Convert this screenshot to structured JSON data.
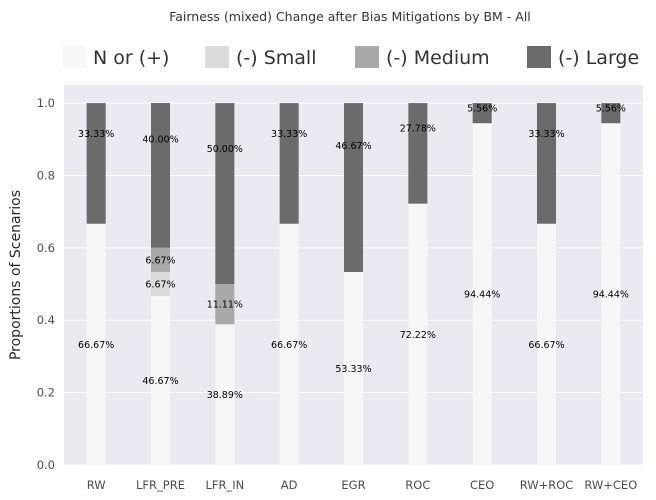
{
  "chart_data": {
    "type": "bar",
    "stacked": true,
    "title": "Fairness (mixed) Change after Bias Mitigations by BM - All",
    "xlabel": "",
    "ylabel": "Proportions of Scenarios",
    "ylim": [
      0,
      1.05
    ],
    "yticks": [
      "0.0",
      "0.2",
      "0.4",
      "0.6",
      "0.8",
      "1.0"
    ],
    "grid": true,
    "legend_position": "top",
    "categories": [
      "RW",
      "LFR_PRE",
      "LFR_IN",
      "AD",
      "EGR",
      "ROC",
      "CEO",
      "RW+ROC",
      "RW+CEO"
    ],
    "series": [
      {
        "name": "N or (+)",
        "color": "#f7f7f7",
        "values": [
          0.6667,
          0.4667,
          0.3889,
          0.6667,
          0.5333,
          0.7222,
          0.9444,
          0.6667,
          0.9444
        ],
        "labels": [
          "66.67%",
          "46.67%",
          "38.89%",
          "66.67%",
          "53.33%",
          "72.22%",
          "94.44%",
          "66.67%",
          "94.44%"
        ]
      },
      {
        "name": "(-) Small",
        "color": "#dcdcdc",
        "values": [
          0,
          0.0667,
          0,
          0,
          0,
          0,
          0,
          0,
          0
        ],
        "labels": [
          "",
          "6.67%",
          "",
          "",
          "",
          "",
          "",
          "",
          ""
        ]
      },
      {
        "name": "(-) Medium",
        "color": "#a9a9a9",
        "values": [
          0,
          0.0667,
          0.1111,
          0,
          0,
          0,
          0,
          0,
          0
        ],
        "labels": [
          "",
          "6.67%",
          "11.11%",
          "",
          "",
          "",
          "",
          "",
          ""
        ]
      },
      {
        "name": "(-) Large",
        "color": "#6b6b6b",
        "values": [
          0.3333,
          0.4,
          0.5,
          0.3333,
          0.4667,
          0.2778,
          0.0556,
          0.3333,
          0.0556
        ],
        "labels": [
          "33.33%",
          "40.00%",
          "50.00%",
          "33.33%",
          "46.67%",
          "27.78%",
          "5.56%",
          "33.33%",
          "5.56%"
        ]
      }
    ],
    "colors": {
      "plot_background": "#eaeaf2",
      "grid": "#ffffff"
    }
  }
}
